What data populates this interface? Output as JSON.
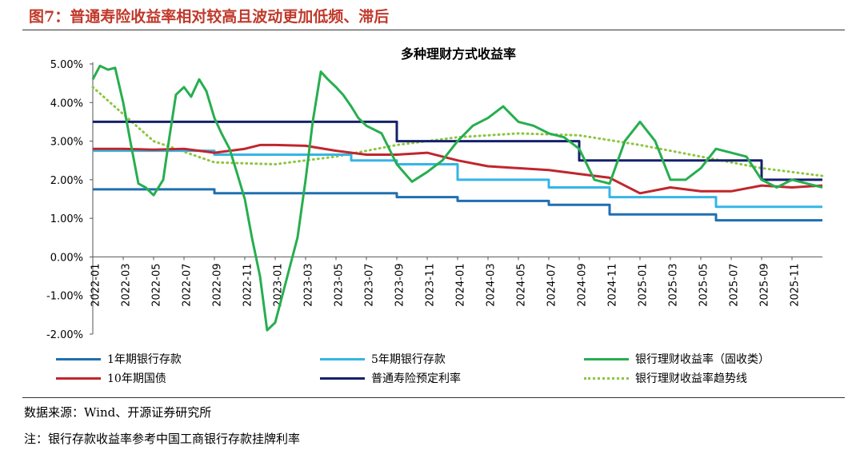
{
  "figure": {
    "title": "图7：普通寿险收益率相对较高且波动更加低频、滞后",
    "source": "数据来源：Wind、开源证券研究所",
    "note": "注：银行存款收益率参考中国工商银行存款挂牌利率"
  },
  "chart_data": {
    "type": "line",
    "title": "多种理财方式收益率",
    "ylim": [
      -2.0,
      5.0
    ],
    "yticks": [
      "5.00%",
      "4.00%",
      "3.00%",
      "2.00%",
      "1.00%",
      "0.00%",
      "-1.00%",
      "-2.00%"
    ],
    "ytick_values": [
      5,
      4,
      3,
      2,
      1,
      0,
      -1,
      -2
    ],
    "xlim": [
      "2022-01",
      "2026-01"
    ],
    "xticks": [
      "2022-01",
      "2022-03",
      "2022-05",
      "2022-07",
      "2022-09",
      "2022-11",
      "2023-01",
      "2023-03",
      "2023-05",
      "2023-07",
      "2023-09",
      "2023-11",
      "2024-01",
      "2024-03",
      "2024-05",
      "2024-07",
      "2024-09",
      "2024-11",
      "2025-01",
      "2025-03",
      "2025-05",
      "2025-07",
      "2025-09",
      "2025-11"
    ],
    "grid": false,
    "legend_position": "bottom",
    "series": [
      {
        "name": "1年期银行存款",
        "color": "#1f6fb0",
        "style": "step",
        "points": [
          [
            "2022-01",
            1.75
          ],
          [
            "2022-09",
            1.65
          ],
          [
            "2023-09",
            1.55
          ],
          [
            "2024-01",
            1.45
          ],
          [
            "2024-07",
            1.35
          ],
          [
            "2024-11",
            1.1
          ],
          [
            "2025-06",
            0.95
          ],
          [
            "2026-01",
            0.95
          ]
        ]
      },
      {
        "name": "5年期银行存款",
        "color": "#35b5e5",
        "style": "step",
        "points": [
          [
            "2022-01",
            2.75
          ],
          [
            "2022-09",
            2.65
          ],
          [
            "2023-06",
            2.5
          ],
          [
            "2023-09",
            2.4
          ],
          [
            "2024-01",
            2.0
          ],
          [
            "2024-07",
            1.8
          ],
          [
            "2024-11",
            1.55
          ],
          [
            "2025-06",
            1.3
          ],
          [
            "2026-01",
            1.3
          ]
        ]
      },
      {
        "name": "银行理财收益率（固收类）",
        "color": "#27ae4f",
        "style": "line",
        "points": [
          [
            "2022-01",
            4.6
          ],
          [
            "2022-01-15",
            4.95
          ],
          [
            "2022-02",
            4.85
          ],
          [
            "2022-02-15",
            4.9
          ],
          [
            "2022-03",
            4.0
          ],
          [
            "2022-03-15",
            3.0
          ],
          [
            "2022-04",
            1.9
          ],
          [
            "2022-04-15",
            1.8
          ],
          [
            "2022-05",
            1.6
          ],
          [
            "2022-05-20",
            2.0
          ],
          [
            "2022-06",
            3.0
          ],
          [
            "2022-06-15",
            4.2
          ],
          [
            "2022-07",
            4.4
          ],
          [
            "2022-07-15",
            4.15
          ],
          [
            "2022-08",
            4.6
          ],
          [
            "2022-08-15",
            4.3
          ],
          [
            "2022-09",
            3.6
          ],
          [
            "2022-09-15",
            3.2
          ],
          [
            "2022-10",
            2.8
          ],
          [
            "2022-10-15",
            2.2
          ],
          [
            "2022-11",
            1.5
          ],
          [
            "2022-11-15",
            0.5
          ],
          [
            "2022-12",
            -0.5
          ],
          [
            "2022-12-15",
            -1.9
          ],
          [
            "2023-01",
            -1.7
          ],
          [
            "2023-01-15",
            -1.0
          ],
          [
            "2023-02",
            -0.2
          ],
          [
            "2023-02-15",
            0.5
          ],
          [
            "2023-03",
            2.0
          ],
          [
            "2023-03-15",
            3.5
          ],
          [
            "2023-04",
            4.8
          ],
          [
            "2023-04-15",
            4.6
          ],
          [
            "2023-05",
            4.4
          ],
          [
            "2023-05-15",
            4.2
          ],
          [
            "2023-06",
            3.9
          ],
          [
            "2023-06-15",
            3.6
          ],
          [
            "2023-07",
            3.4
          ],
          [
            "2023-08",
            3.2
          ],
          [
            "2023-09",
            2.4
          ],
          [
            "2023-10",
            1.95
          ],
          [
            "2023-11",
            2.2
          ],
          [
            "2023-12",
            2.5
          ],
          [
            "2024-01",
            3.0
          ],
          [
            "2024-02",
            3.4
          ],
          [
            "2024-03",
            3.6
          ],
          [
            "2024-04",
            3.9
          ],
          [
            "2024-05",
            3.5
          ],
          [
            "2024-06",
            3.4
          ],
          [
            "2024-07",
            3.2
          ],
          [
            "2024-08",
            3.1
          ],
          [
            "2024-09",
            2.8
          ],
          [
            "2024-10",
            2.0
          ],
          [
            "2024-11",
            1.9
          ],
          [
            "2024-12",
            3.0
          ],
          [
            "2025-01",
            3.5
          ],
          [
            "2025-02",
            3.0
          ],
          [
            "2025-03",
            2.0
          ],
          [
            "2025-04",
            2.0
          ],
          [
            "2025-05",
            2.3
          ],
          [
            "2025-06",
            2.8
          ],
          [
            "2025-07",
            2.7
          ],
          [
            "2025-08",
            2.6
          ],
          [
            "2025-09",
            2.0
          ],
          [
            "2025-10",
            1.8
          ],
          [
            "2025-11",
            2.0
          ],
          [
            "2025-12",
            1.9
          ],
          [
            "2026-01",
            1.8
          ]
        ]
      },
      {
        "name": "10年期国债",
        "color": "#c0262d",
        "style": "line",
        "points": [
          [
            "2022-01",
            2.8
          ],
          [
            "2022-03",
            2.8
          ],
          [
            "2022-05",
            2.78
          ],
          [
            "2022-07",
            2.8
          ],
          [
            "2022-09",
            2.7
          ],
          [
            "2022-11",
            2.8
          ],
          [
            "2022-12",
            2.9
          ],
          [
            "2023-01",
            2.9
          ],
          [
            "2023-03",
            2.88
          ],
          [
            "2023-05",
            2.75
          ],
          [
            "2023-07",
            2.65
          ],
          [
            "2023-09",
            2.65
          ],
          [
            "2023-11",
            2.7
          ],
          [
            "2024-01",
            2.5
          ],
          [
            "2024-03",
            2.35
          ],
          [
            "2024-05",
            2.3
          ],
          [
            "2024-07",
            2.25
          ],
          [
            "2024-09",
            2.15
          ],
          [
            "2024-11",
            2.05
          ],
          [
            "2025-01",
            1.65
          ],
          [
            "2025-03",
            1.8
          ],
          [
            "2025-05",
            1.7
          ],
          [
            "2025-07",
            1.7
          ],
          [
            "2025-09",
            1.85
          ],
          [
            "2025-11",
            1.8
          ],
          [
            "2026-01",
            1.85
          ]
        ]
      },
      {
        "name": "普通寿险预定利率",
        "color": "#14206b",
        "style": "step",
        "points": [
          [
            "2022-01",
            3.5
          ],
          [
            "2023-09",
            3.0
          ],
          [
            "2024-09",
            2.5
          ],
          [
            "2025-09",
            2.0
          ],
          [
            "2026-01",
            2.0
          ]
        ]
      },
      {
        "name": "银行理财收益率趋势线",
        "color": "#8cc63f",
        "style": "dotted",
        "points": [
          [
            "2022-01",
            4.4
          ],
          [
            "2022-05",
            3.0
          ],
          [
            "2022-09",
            2.45
          ],
          [
            "2023-01",
            2.4
          ],
          [
            "2023-05",
            2.6
          ],
          [
            "2023-09",
            2.9
          ],
          [
            "2024-01",
            3.1
          ],
          [
            "2024-05",
            3.2
          ],
          [
            "2024-09",
            3.15
          ],
          [
            "2025-01",
            2.9
          ],
          [
            "2025-05",
            2.6
          ],
          [
            "2025-09",
            2.3
          ],
          [
            "2026-01",
            2.1
          ]
        ]
      }
    ]
  }
}
